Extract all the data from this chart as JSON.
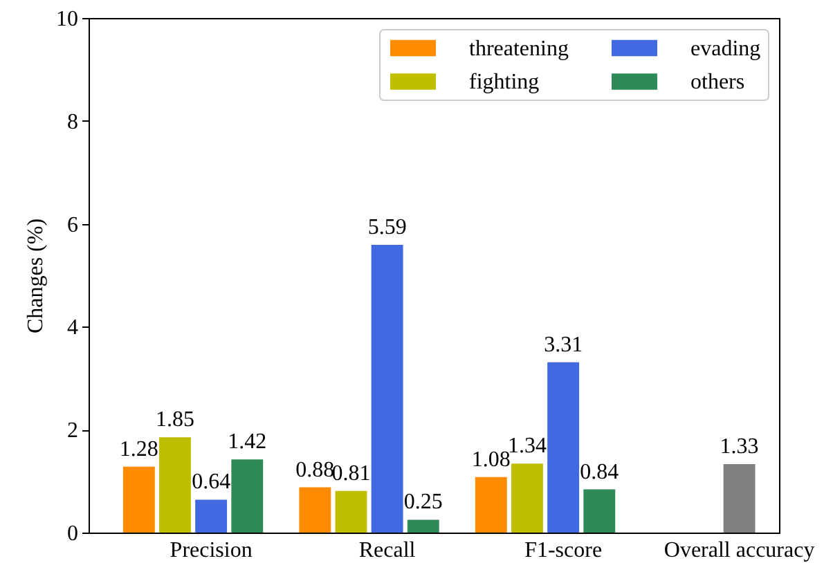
{
  "chart_data": {
    "type": "bar",
    "ylabel": "Changes (%)",
    "categories": [
      "Precision",
      "Recall",
      "F1-score",
      "Overall accuracy"
    ],
    "series": [
      {
        "name": "threatening",
        "color": "#ff8c00",
        "values": [
          1.28,
          0.88,
          1.08,
          null
        ]
      },
      {
        "name": "fighting",
        "color": "#bfbf00",
        "values": [
          1.85,
          0.81,
          1.34,
          null
        ]
      },
      {
        "name": "evading",
        "color": "#4169e1",
        "values": [
          0.64,
          5.59,
          3.31,
          null
        ]
      },
      {
        "name": "others",
        "color": "#2e8b57",
        "values": [
          1.42,
          0.25,
          0.84,
          null
        ]
      },
      {
        "color": "#808080",
        "values": [
          null,
          null,
          null,
          1.33
        ]
      }
    ],
    "ylim": [
      0,
      10
    ],
    "yticks": [
      0,
      2,
      4,
      6,
      8,
      10
    ],
    "data_labels": true,
    "legend": "top right"
  }
}
